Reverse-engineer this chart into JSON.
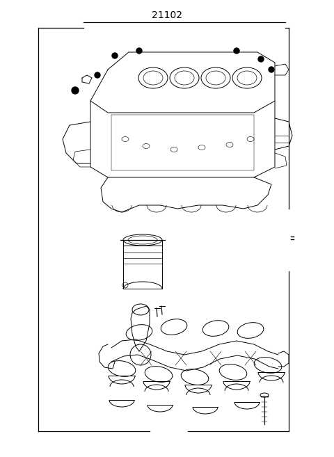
{
  "bg_color": "#ffffff",
  "line_color": "#000000",
  "fig_width": 4.8,
  "fig_height": 6.57,
  "dpi": 100,
  "label_text": "21102",
  "label_fontsize": 10,
  "border_lw": 0.9,
  "draw_lw": 0.7
}
